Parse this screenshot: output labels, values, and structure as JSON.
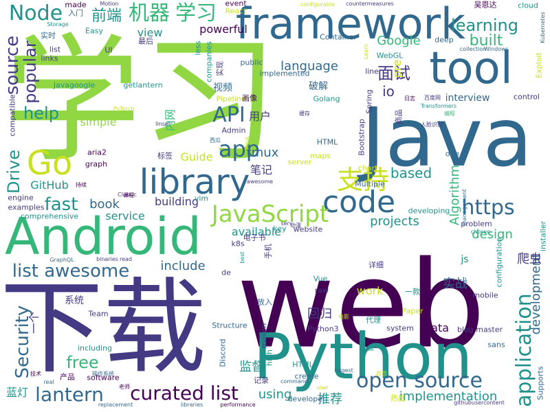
{
  "palette": {
    "background": "#ffffff",
    "dark_purple": "#440154",
    "indigo": "#443a83",
    "blue": "#31688e",
    "teal": "#21918c",
    "green": "#35b779",
    "light_green": "#90d743",
    "yellow_green": "#c8e020"
  },
  "words": [
    "学习",
    "web",
    "下载",
    "Java",
    "Python",
    "Android",
    "framework",
    "tool",
    "library",
    "Go",
    "code",
    "JavaScript",
    "支持",
    "app",
    "open source",
    "curated list",
    "lantern",
    "list awesome",
    "API",
    "Node",
    "机器",
    "学习",
    "前端",
    "https",
    "application",
    "Security",
    "Drive",
    "source",
    "popular",
    "help",
    "fast",
    "free",
    "面试",
    "learning",
    "built",
    "Google",
    "powerful",
    "view",
    "language",
    "based",
    "projects",
    "implementation",
    "development",
    "Algorithm",
    "design",
    "爬虫",
    "实战",
    "回归",
    "监督",
    "推荐",
    "using",
    "include",
    "building",
    "book",
    "service",
    "simple",
    "tmux",
    "笔记",
    "用户",
    "Guide",
    "available",
    "GitHub",
    "蓝灯",
    "一个",
    "系统",
    "data",
    "work",
    "js",
    "视频",
    "破解",
    "interview",
    "Javagoogle",
    "getlantern",
    "Golang",
    "Pipeline",
    "Admin",
    "Container",
    "deep",
    "one",
    "chart",
    "graph",
    "aria2",
    "标签",
    "HTML",
    "maps",
    "Multiple",
    "problem",
    "website",
    "电子书",
    "k8s",
    "key",
    "Vue",
    "raw",
    "Paper",
    "代理",
    "一款",
    "blog master",
    "system",
    "Python3",
    "HTML5",
    "create",
    "developer",
    "记录",
    "million",
    "including",
    "software",
    "Team",
    "Structure",
    "mobile",
    "control",
    "configuration",
    "installer",
    "Supports",
    "sans",
    "Easy",
    "made",
    "入门",
    "event",
    "React",
    "Storage",
    "实时",
    "最后",
    "UI",
    "list",
    "links",
    "Exploit",
    "Windows",
    "collection",
    "cloud",
    "吴恩达",
    "io",
    "pre",
    "countermeasures",
    "public",
    "implemented",
    "less",
    "companies",
    "实现",
    "Bootstrap",
    "Spring",
    "line",
    "WebGL",
    "商品",
    "日志",
    "百度网",
    "comprehensive",
    "examples",
    "engine",
    "compatible",
    "Flink",
    "server",
    "awesome",
    "vim",
    "serv",
    "Discord",
    "high",
    "real",
    "产品",
    "技术",
    "详细",
    "放入",
    "手机",
    "de",
    "best",
    "binaries",
    "read",
    "GraphQL",
    "replacement",
    "libraries",
    "performance",
    "command",
    "githubusercontent",
    "热度",
    "Transformers",
    "Classic",
    "Motion",
    "PyTorch",
    "linset",
    "西瓜",
    "画像",
    "缓存",
    "configurable",
    "management",
    "chosen",
    "largest",
    "课程",
    "动漫",
    "内网",
    "Kubernetes",
    "developing",
    "Learn",
    "持续",
    "老师",
    "首页",
    "电影",
    "操作系统",
    "user",
    "Flask",
    "人脸识别",
    "编程"
  ]
}
